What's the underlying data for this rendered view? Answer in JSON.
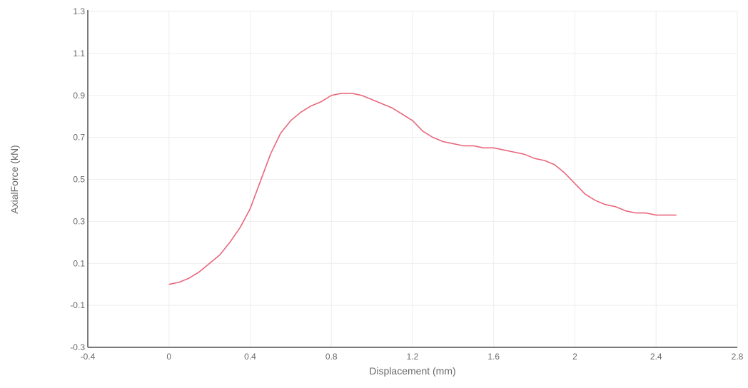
{
  "chart_data": {
    "type": "line",
    "title": "",
    "xlabel": "Displacement (mm)",
    "ylabel": "AxialForce (kN)",
    "xlim": [
      -0.4,
      2.8
    ],
    "ylim": [
      -0.3,
      1.3
    ],
    "x_ticks": [
      -0.4,
      0,
      0.4,
      0.8,
      1.2,
      1.6,
      2,
      2.4,
      2.8
    ],
    "x_tick_labels": [
      "-0.4",
      "0",
      "0.4",
      "0.8",
      "1.2",
      "1.6",
      "2",
      "2.4",
      "2.8"
    ],
    "y_ticks": [
      -0.3,
      -0.1,
      0.1,
      0.3,
      0.5,
      0.7,
      0.9,
      1.1,
      1.3
    ],
    "y_tick_labels": [
      "-0.3",
      "-0.1",
      "0.1",
      "0.3",
      "0.5",
      "0.7",
      "0.9",
      "1.1",
      "1.3"
    ],
    "grid": true,
    "legend": "none",
    "series": [
      {
        "color": "#e8677c",
        "x": [
          0,
          0.05,
          0.1,
          0.15,
          0.2,
          0.25,
          0.3,
          0.35,
          0.4,
          0.45,
          0.5,
          0.55,
          0.6,
          0.65,
          0.7,
          0.75,
          0.8,
          0.85,
          0.9,
          0.95,
          1.0,
          1.05,
          1.1,
          1.15,
          1.2,
          1.25,
          1.3,
          1.35,
          1.4,
          1.45,
          1.5,
          1.55,
          1.6,
          1.65,
          1.7,
          1.75,
          1.8,
          1.85,
          1.9,
          1.95,
          2.0,
          2.05,
          2.1,
          2.15,
          2.2,
          2.25,
          2.3,
          2.35,
          2.4,
          2.45,
          2.5
        ],
        "y": [
          0.0,
          0.01,
          0.03,
          0.06,
          0.1,
          0.14,
          0.2,
          0.27,
          0.36,
          0.49,
          0.62,
          0.72,
          0.78,
          0.82,
          0.85,
          0.87,
          0.9,
          0.91,
          0.91,
          0.9,
          0.88,
          0.86,
          0.84,
          0.81,
          0.78,
          0.73,
          0.7,
          0.68,
          0.67,
          0.66,
          0.66,
          0.65,
          0.65,
          0.64,
          0.63,
          0.62,
          0.6,
          0.59,
          0.57,
          0.53,
          0.48,
          0.43,
          0.4,
          0.38,
          0.37,
          0.35,
          0.34,
          0.34,
          0.33,
          0.33,
          0.33
        ]
      }
    ]
  }
}
